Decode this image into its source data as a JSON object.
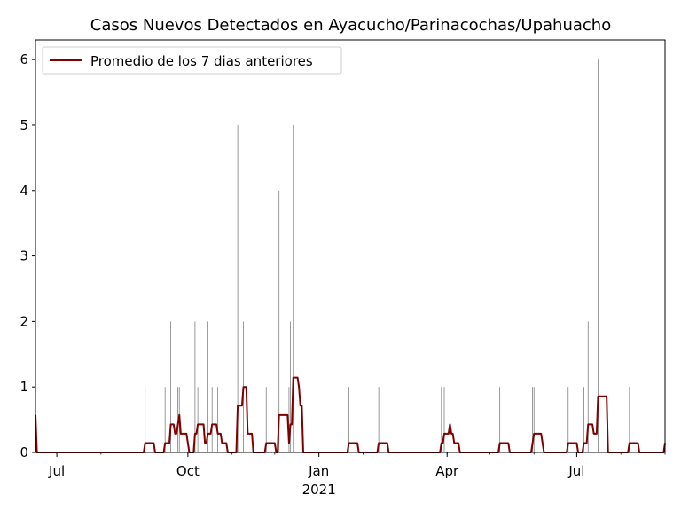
{
  "chart_data": {
    "type": "bar",
    "title": "Casos Nuevos Detectados en Ayacucho/Parinacochas/Upahuacho",
    "xlabel": "",
    "ylabel": "",
    "xlim": [
      "2020-06-16",
      "2021-09-01"
    ],
    "ylim": [
      0,
      6.3
    ],
    "x_ticks": [
      {
        "date": "2020-07-01",
        "label": "Jul",
        "sublabel": ""
      },
      {
        "date": "2020-10-01",
        "label": "Oct",
        "sublabel": ""
      },
      {
        "date": "2021-01-01",
        "label": "Jan",
        "sublabel": "2021"
      },
      {
        "date": "2021-04-01",
        "label": "Apr",
        "sublabel": ""
      },
      {
        "date": "2021-07-01",
        "label": "Jul",
        "sublabel": ""
      }
    ],
    "y_ticks": [
      0,
      1,
      2,
      3,
      4,
      5,
      6
    ],
    "grid": false,
    "legend_position": "top-left",
    "colors": {
      "bars": "#808080",
      "line": "#800000"
    },
    "series": [
      {
        "name": "",
        "kind": "bar",
        "points": [
          {
            "date": "2020-09-01",
            "value": 1
          },
          {
            "date": "2020-09-15",
            "value": 1
          },
          {
            "date": "2020-09-19",
            "value": 2
          },
          {
            "date": "2020-09-24",
            "value": 1
          },
          {
            "date": "2020-09-25",
            "value": 1
          },
          {
            "date": "2020-10-06",
            "value": 2
          },
          {
            "date": "2020-10-08",
            "value": 1
          },
          {
            "date": "2020-10-15",
            "value": 2
          },
          {
            "date": "2020-10-18",
            "value": 1
          },
          {
            "date": "2020-10-22",
            "value": 1
          },
          {
            "date": "2020-11-05",
            "value": 5
          },
          {
            "date": "2020-11-09",
            "value": 2
          },
          {
            "date": "2020-11-25",
            "value": 1
          },
          {
            "date": "2020-12-04",
            "value": 4
          },
          {
            "date": "2020-12-11",
            "value": 1
          },
          {
            "date": "2020-12-12",
            "value": 2
          },
          {
            "date": "2020-12-14",
            "value": 5
          },
          {
            "date": "2021-01-22",
            "value": 1
          },
          {
            "date": "2021-02-12",
            "value": 1
          },
          {
            "date": "2021-03-28",
            "value": 1
          },
          {
            "date": "2021-03-30",
            "value": 1
          },
          {
            "date": "2021-04-03",
            "value": 1
          },
          {
            "date": "2021-05-08",
            "value": 1
          },
          {
            "date": "2021-05-31",
            "value": 1
          },
          {
            "date": "2021-06-01",
            "value": 1
          },
          {
            "date": "2021-06-25",
            "value": 1
          },
          {
            "date": "2021-07-06",
            "value": 1
          },
          {
            "date": "2021-07-09",
            "value": 2
          },
          {
            "date": "2021-07-16",
            "value": 6
          },
          {
            "date": "2021-08-07",
            "value": 1
          },
          {
            "date": "2021-09-01",
            "value": 1
          }
        ]
      },
      {
        "name": "Promedio de los 7 dias anteriores",
        "kind": "line"
      }
    ]
  }
}
